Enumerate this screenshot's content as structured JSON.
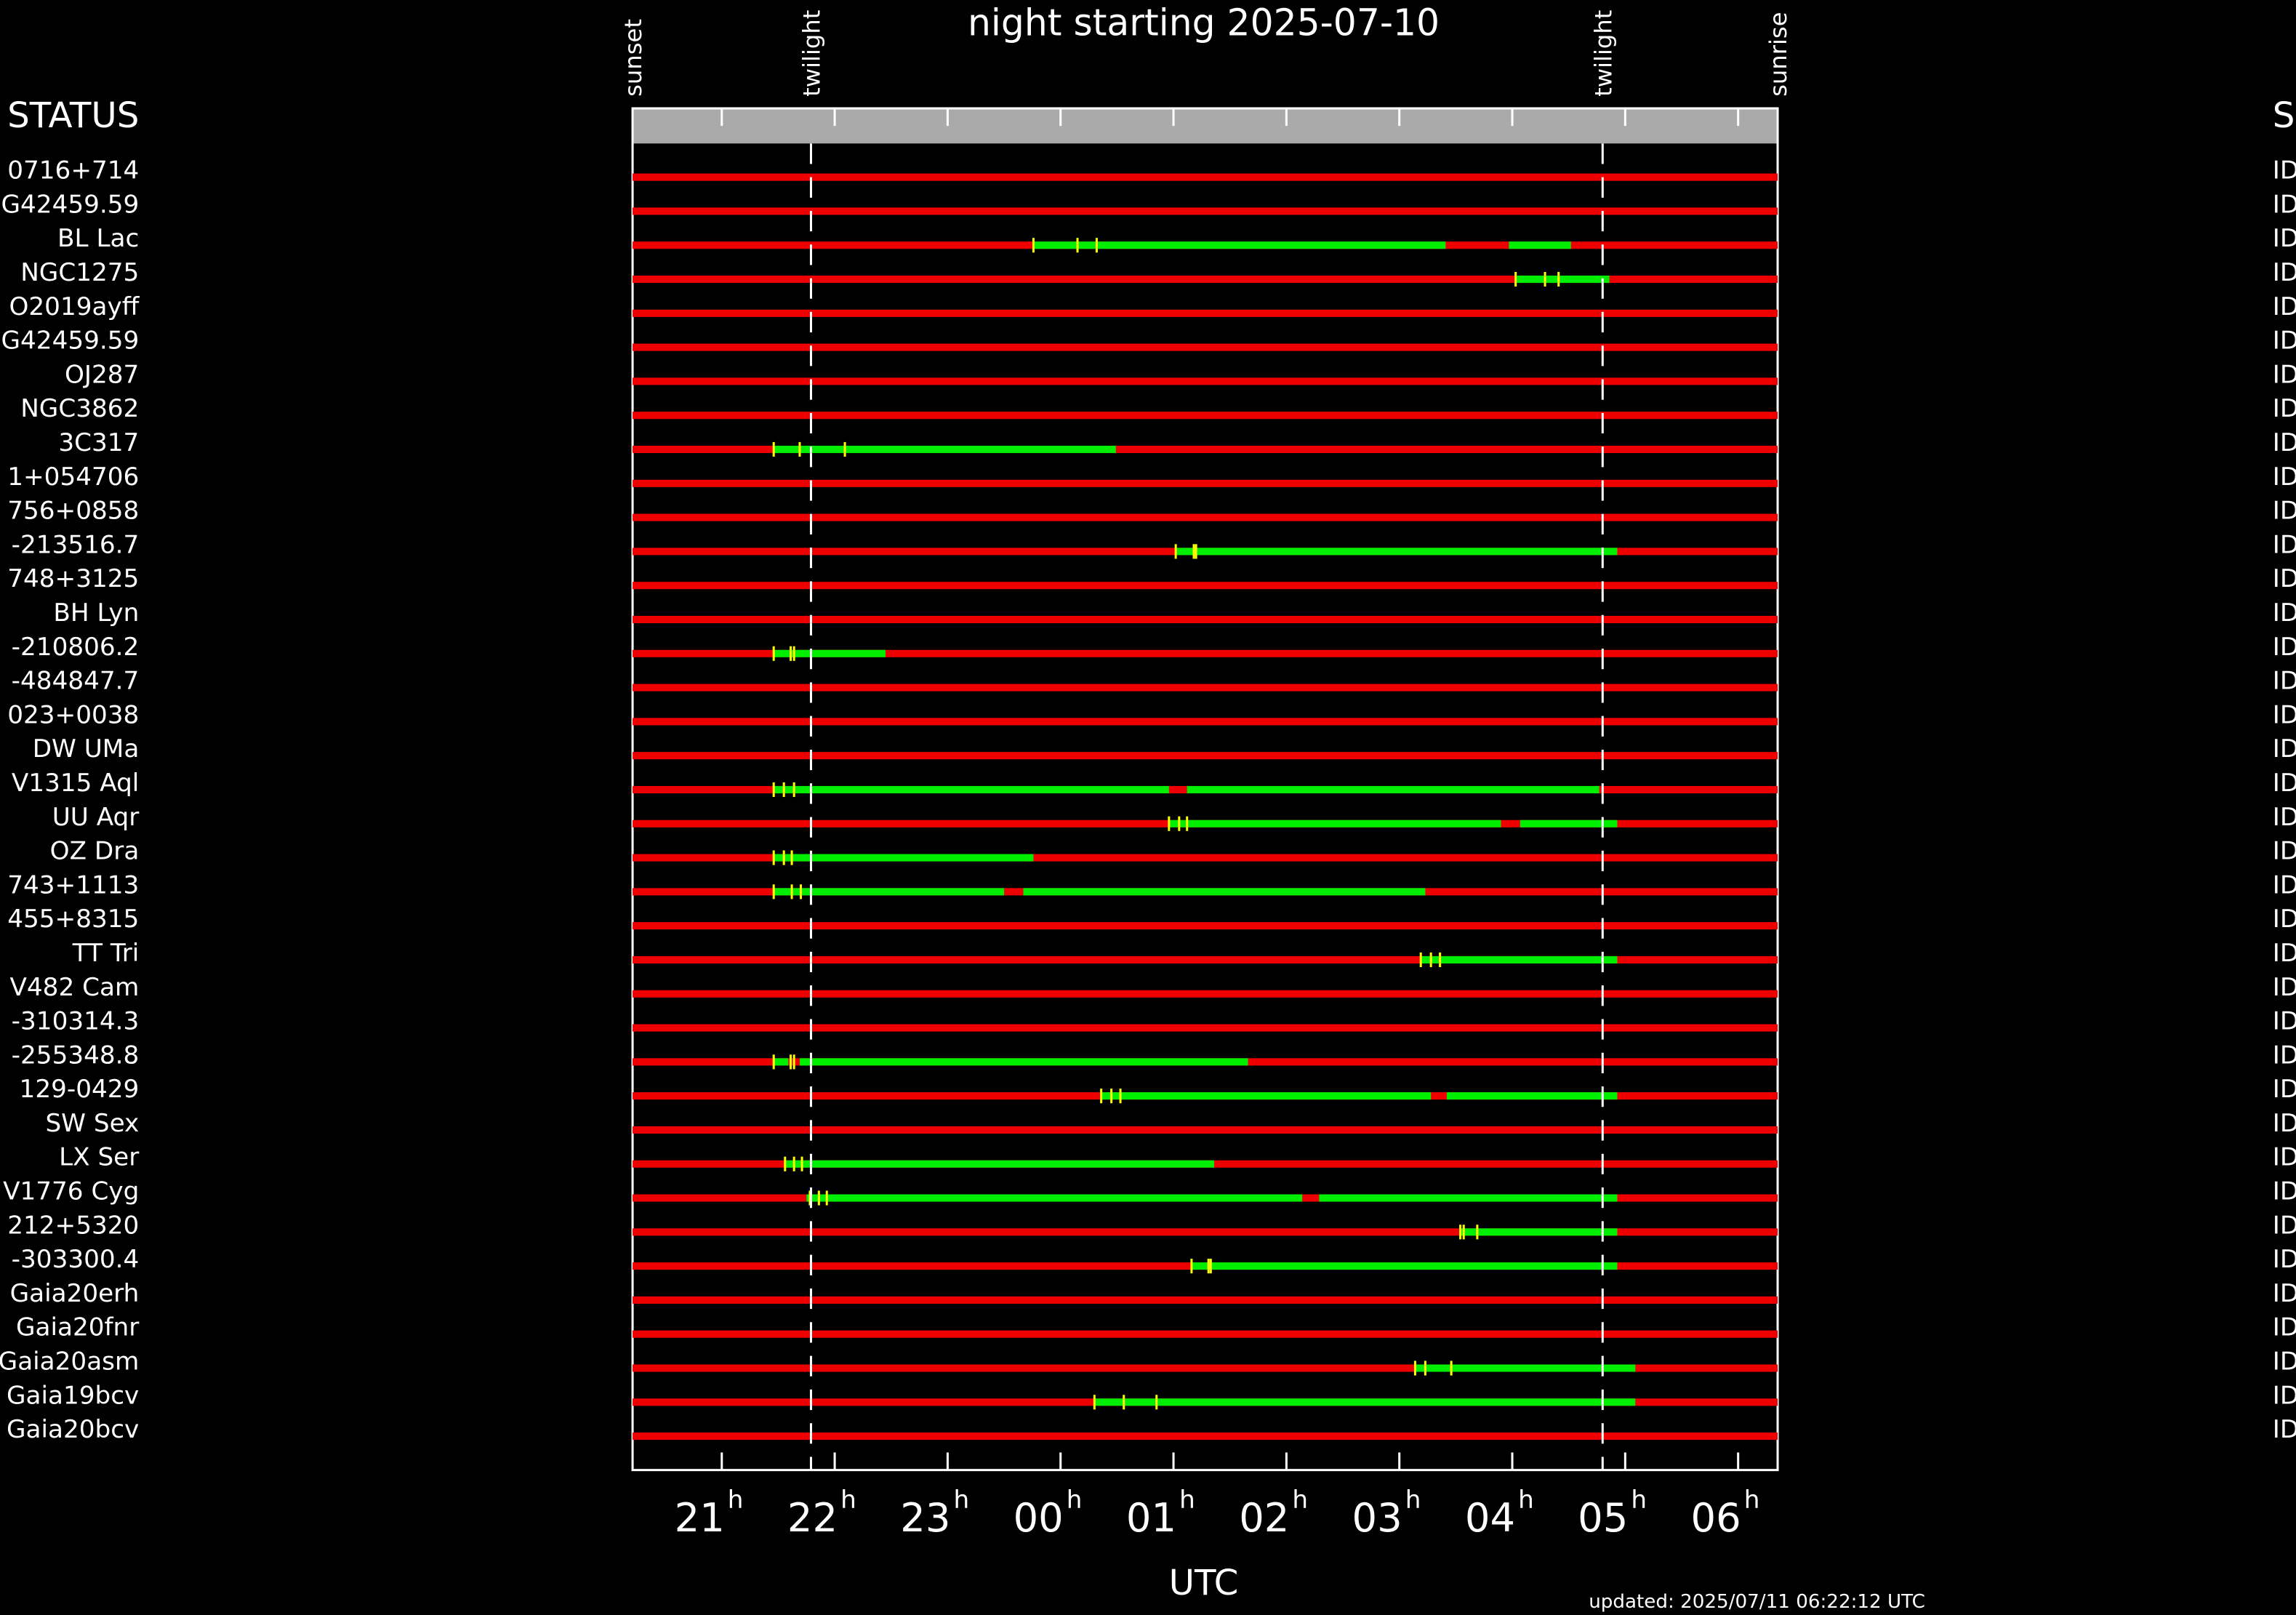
{
  "chart_data": {
    "type": "schedule",
    "title": "night starting 2025-07-10",
    "left_header": "STATUS",
    "right_header": "S",
    "x_label": "UTC",
    "footer": "updated: 2025/07/11 06:22:12 UTC",
    "xlim": [
      20.21,
      30.35
    ],
    "xticks": [
      21,
      22,
      23,
      {
        "value": 24,
        "label": "00"
      },
      {
        "value": 25,
        "label": "01"
      },
      {
        "value": 26,
        "label": "02"
      },
      {
        "value": 27,
        "label": "03"
      },
      {
        "value": 28,
        "label": "04"
      },
      {
        "value": 29,
        "label": "05"
      },
      {
        "value": 30,
        "label": "06"
      }
    ],
    "xtick_unit": "h",
    "events": [
      {
        "label": "sunset",
        "value": 20.21
      },
      {
        "label": "twilight",
        "value": 21.79
      },
      {
        "label": "twilight",
        "value": 28.8
      },
      {
        "label": "sunrise",
        "value": 30.35
      }
    ],
    "unavailable_color": "#ee0000",
    "available_color": "#00ee00",
    "exposure_color": "#ffff00",
    "rows": [
      {
        "name": "0716+714",
        "status": "ID",
        "windows": [],
        "exposures": []
      },
      {
        "name": "G42459.59",
        "status": "ID",
        "windows": [],
        "exposures": []
      },
      {
        "name": "BL Lac",
        "status": "ID",
        "windows": [
          [
            23.76,
            27.41
          ],
          [
            27.97,
            28.52
          ]
        ],
        "exposures": [
          23.76,
          24.15,
          24.32
        ]
      },
      {
        "name": "NGC1275",
        "status": "ID",
        "windows": [
          [
            28.03,
            28.86
          ]
        ],
        "exposures": [
          28.03,
          28.29,
          28.41
        ]
      },
      {
        "name": "O2019ayff",
        "status": "ID",
        "windows": [],
        "exposures": []
      },
      {
        "name": "G42459.59",
        "status": "ID",
        "windows": [],
        "exposures": []
      },
      {
        "name": "OJ287",
        "status": "ID",
        "windows": [],
        "exposures": []
      },
      {
        "name": "NGC3862",
        "status": "ID",
        "windows": [],
        "exposures": []
      },
      {
        "name": "3C317",
        "status": "ID",
        "windows": [
          [
            21.46,
            24.49
          ]
        ],
        "exposures": [
          21.46,
          21.69,
          22.09
        ]
      },
      {
        "name": "1+054706",
        "status": "ID",
        "windows": [],
        "exposures": []
      },
      {
        "name": "756+0858",
        "status": "ID",
        "windows": [],
        "exposures": []
      },
      {
        "name": "-213516.7",
        "status": "ID",
        "windows": [
          [
            25.02,
            28.93
          ]
        ],
        "exposures": [
          25.02,
          25.18,
          25.2
        ]
      },
      {
        "name": "748+3125",
        "status": "ID",
        "windows": [],
        "exposures": []
      },
      {
        "name": "BH Lyn",
        "status": "ID",
        "windows": [],
        "exposures": []
      },
      {
        "name": "-210806.2",
        "status": "ID",
        "windows": [
          [
            21.46,
            22.45
          ]
        ],
        "exposures": [
          21.46,
          21.61,
          21.64
        ]
      },
      {
        "name": "-484847.7",
        "status": "ID",
        "windows": [],
        "exposures": []
      },
      {
        "name": "023+0038",
        "status": "ID",
        "windows": [],
        "exposures": []
      },
      {
        "name": "DW UMa",
        "status": "ID",
        "windows": [],
        "exposures": []
      },
      {
        "name": "V1315 Aql",
        "status": "ID",
        "windows": [
          [
            21.46,
            24.96
          ],
          [
            25.12,
            28.77
          ]
        ],
        "exposures": [
          21.46,
          21.55,
          21.64
        ]
      },
      {
        "name": "UU Aqr",
        "status": "ID",
        "windows": [
          [
            24.96,
            27.9
          ],
          [
            28.07,
            28.93
          ]
        ],
        "exposures": [
          24.96,
          25.05,
          25.12
        ]
      },
      {
        "name": "OZ Dra",
        "status": "ID",
        "windows": [
          [
            21.46,
            23.76
          ]
        ],
        "exposures": [
          21.46,
          21.55,
          21.62
        ]
      },
      {
        "name": "743+1113",
        "status": "ID",
        "windows": [
          [
            21.46,
            23.5
          ],
          [
            23.67,
            27.23
          ]
        ],
        "exposures": [
          21.46,
          21.62,
          21.7
        ]
      },
      {
        "name": "455+8315",
        "status": "ID",
        "windows": [],
        "exposures": []
      },
      {
        "name": "TT Tri",
        "status": "ID",
        "windows": [
          [
            27.19,
            28.93
          ]
        ],
        "exposures": [
          27.19,
          27.28,
          27.36
        ]
      },
      {
        "name": "V482 Cam",
        "status": "ID",
        "windows": [],
        "exposures": []
      },
      {
        "name": "-310314.3",
        "status": "ID",
        "windows": [],
        "exposures": []
      },
      {
        "name": "-255348.8",
        "status": "ID",
        "windows": [
          [
            21.46,
            21.59
          ],
          [
            21.69,
            25.66
          ]
        ],
        "exposures": [
          21.46,
          21.61,
          21.64
        ]
      },
      {
        "name": "129-0429",
        "status": "ID",
        "windows": [
          [
            24.36,
            27.28
          ],
          [
            27.42,
            28.93
          ]
        ],
        "exposures": [
          24.36,
          24.45,
          24.53
        ]
      },
      {
        "name": "SW Sex",
        "status": "ID",
        "windows": [],
        "exposures": []
      },
      {
        "name": "LX Ser",
        "status": "ID",
        "windows": [
          [
            21.56,
            25.36
          ]
        ],
        "exposures": [
          21.56,
          21.64,
          21.71
        ]
      },
      {
        "name": "V1776 Cyg",
        "status": "ID",
        "windows": [
          [
            21.75,
            26.14
          ],
          [
            26.29,
            28.93
          ]
        ],
        "exposures": [
          21.78,
          21.86,
          21.93
        ]
      },
      {
        "name": "212+5320",
        "status": "ID",
        "windows": [
          [
            27.54,
            28.93
          ]
        ],
        "exposures": [
          27.54,
          27.57,
          27.69
        ]
      },
      {
        "name": "-303300.4",
        "status": "ID",
        "windows": [
          [
            25.16,
            28.93
          ]
        ],
        "exposures": [
          25.16,
          25.31,
          25.33
        ]
      },
      {
        "name": "Gaia20erh",
        "status": "ID",
        "windows": [],
        "exposures": []
      },
      {
        "name": "Gaia20fnr",
        "status": "ID",
        "windows": [],
        "exposures": []
      },
      {
        "name": "Gaia20asm",
        "status": "ID",
        "windows": [
          [
            27.14,
            29.09
          ]
        ],
        "exposures": [
          27.14,
          27.23,
          27.46
        ]
      },
      {
        "name": "Gaia19bcv",
        "status": "ID",
        "windows": [
          [
            24.3,
            29.09
          ]
        ],
        "exposures": [
          24.3,
          24.56,
          24.85
        ]
      },
      {
        "name": "Gaia20bcv",
        "status": "ID",
        "windows": [],
        "exposures": []
      }
    ]
  }
}
